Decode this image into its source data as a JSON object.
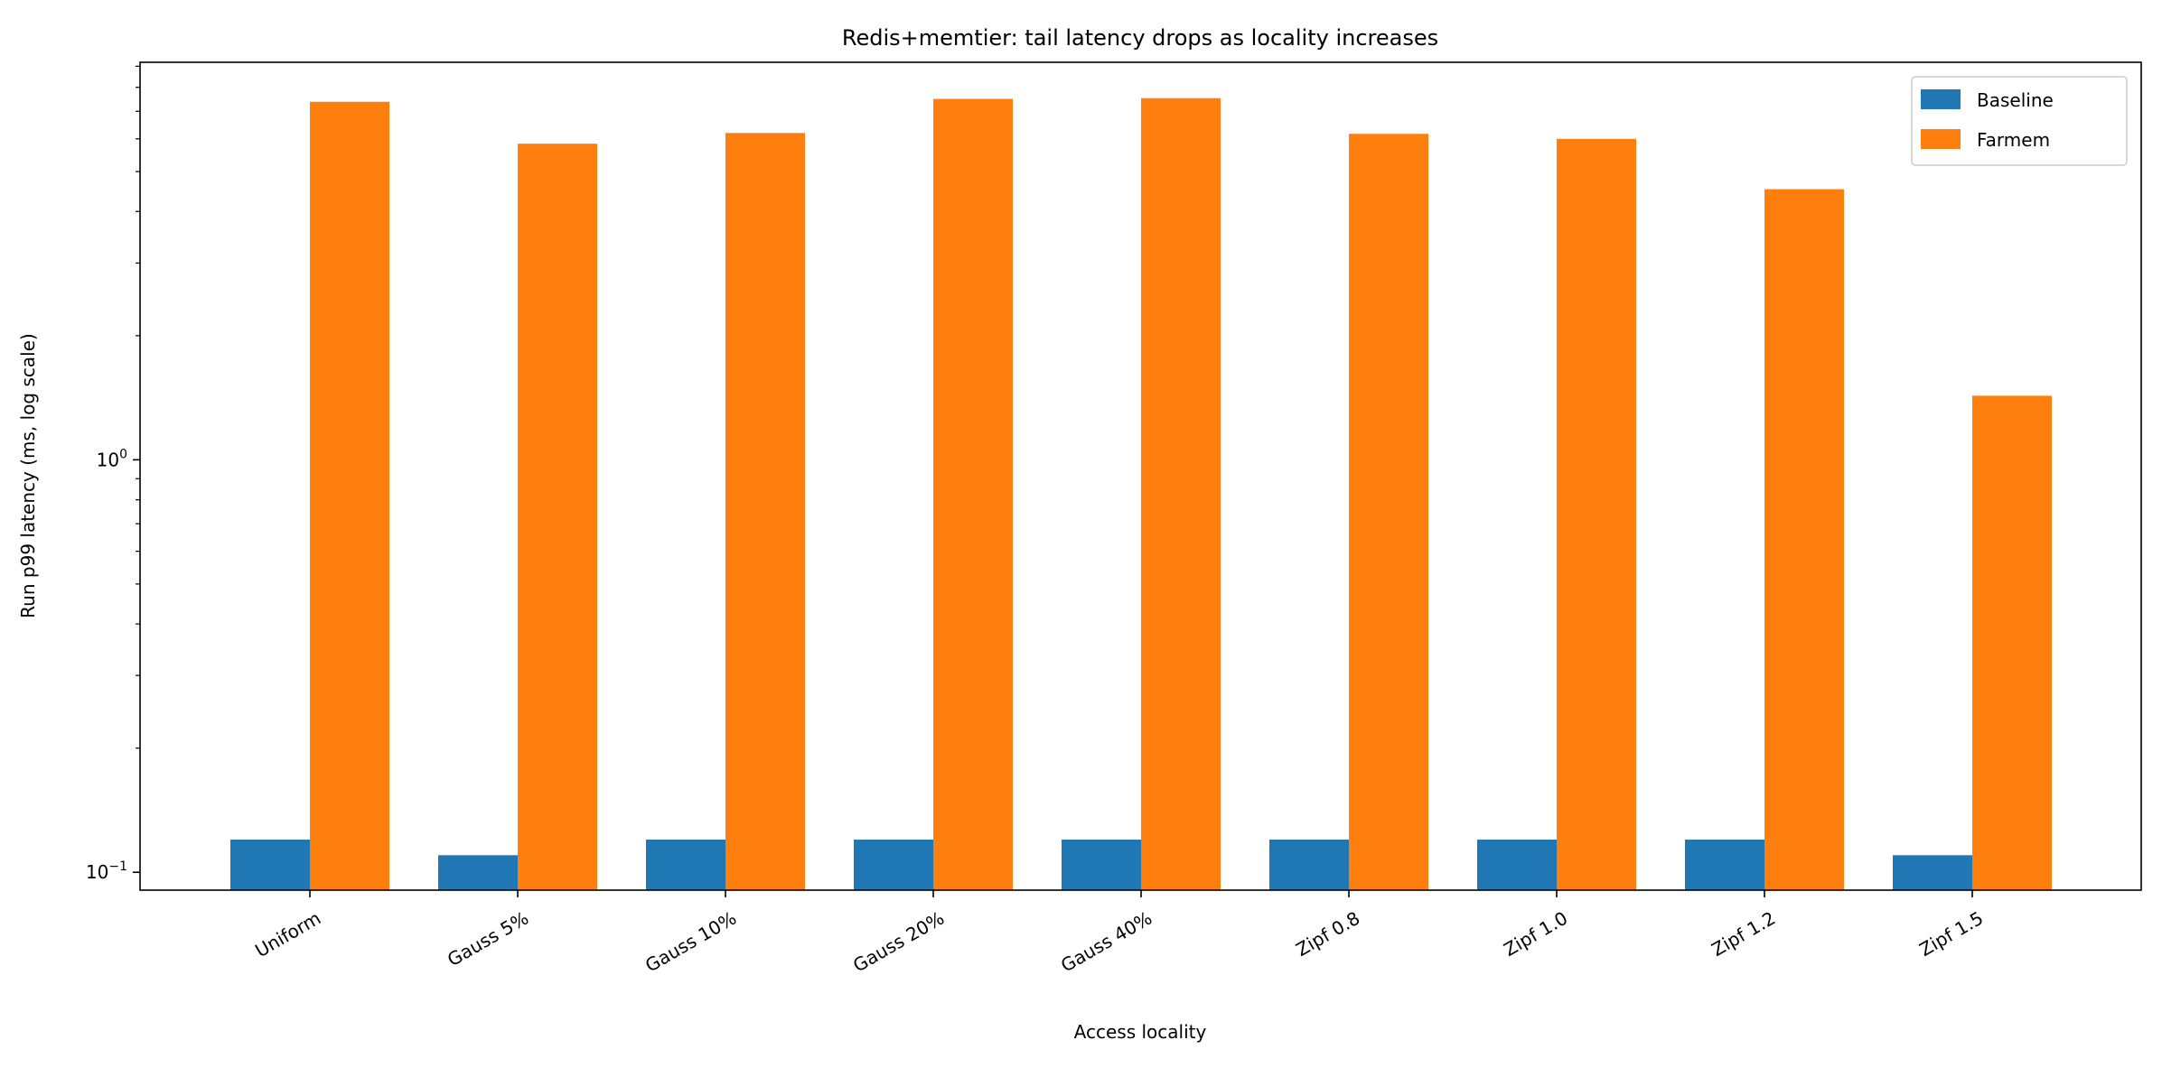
{
  "chart_data": {
    "type": "bar",
    "title": "Redis+memtier: tail latency drops as locality increases",
    "xlabel": "Access locality",
    "ylabel": "Run p99 latency (ms, log scale)",
    "yscale": "log",
    "ylim": [
      0.0905,
      9.2
    ],
    "yticks": [
      {
        "value": 0.1,
        "base": "10",
        "exp": "−1"
      },
      {
        "value": 1,
        "base": "10",
        "exp": "0"
      }
    ],
    "categories": [
      "Uniform",
      "Gauss 5%",
      "Gauss 10%",
      "Gauss 20%",
      "Gauss 40%",
      "Zipf 0.8",
      "Zipf 1.0",
      "Zipf 1.2",
      "Zipf 1.5"
    ],
    "series": [
      {
        "name": "Baseline",
        "color": "#1f77b4",
        "values": [
          0.12,
          0.11,
          0.12,
          0.12,
          0.12,
          0.12,
          0.12,
          0.12,
          0.11
        ]
      },
      {
        "name": "Farmem",
        "color": "#ff7f0e",
        "values": [
          7.38,
          5.84,
          6.2,
          7.5,
          7.53,
          6.17,
          6.0,
          4.53,
          1.43
        ]
      }
    ],
    "grid": false,
    "legend": "top-right"
  }
}
